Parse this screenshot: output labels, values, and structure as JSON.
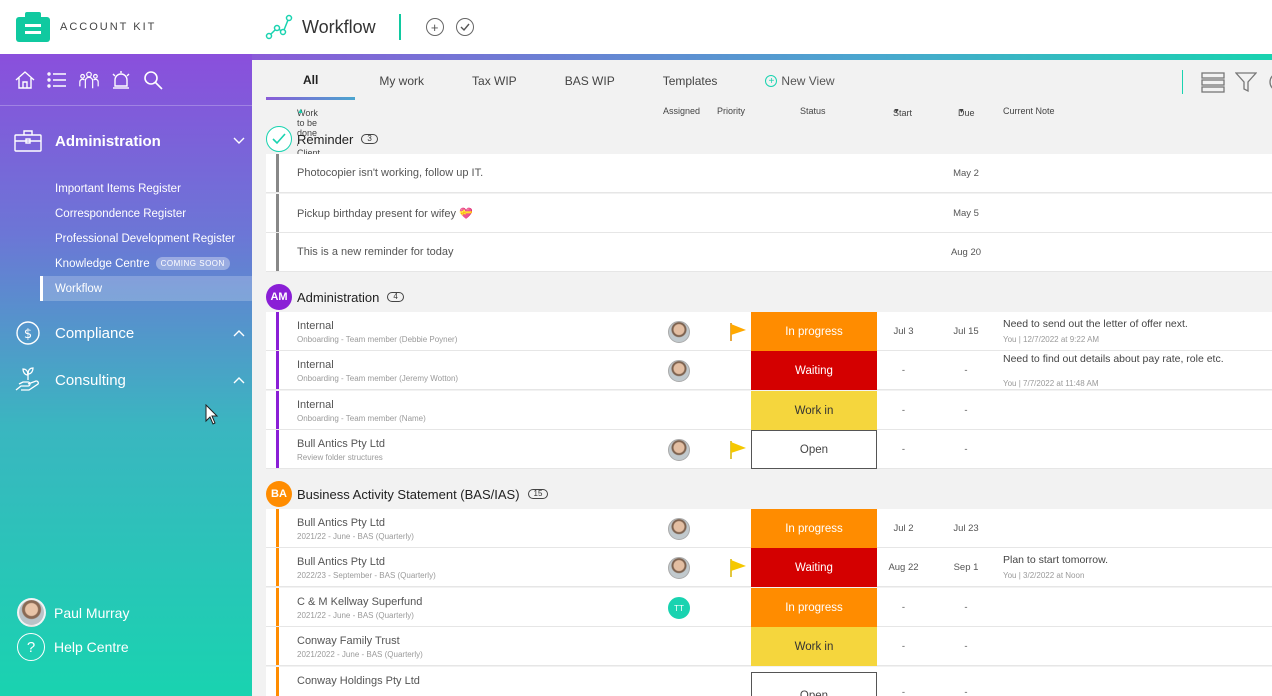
{
  "brand": {
    "name": "ACCOUNT KIT"
  },
  "header": {
    "title": "Workflow"
  },
  "sidebar": {
    "sections": [
      {
        "label": "Administration",
        "items": [
          "Important Items Register",
          "Correspondence Register",
          "Professional Development Register",
          "Knowledge Centre",
          "Workflow"
        ],
        "coming_soon": "COMING SOON",
        "active_item": "Workflow"
      },
      {
        "label": "Compliance"
      },
      {
        "label": "Consulting"
      }
    ],
    "user": {
      "name": "Paul Murray"
    },
    "help": {
      "label": "Help Centre"
    }
  },
  "tabs": {
    "all": "All",
    "my_work": "My work",
    "tax_wip": "Tax WIP",
    "bas_wip": "BAS WIP",
    "templates": "Templates",
    "new_view": "New View"
  },
  "columns": {
    "work": "Work to be done / Client",
    "assigned": "Assigned",
    "priority": "Priority",
    "status": "Status",
    "start": "Start",
    "due": "Due",
    "note": "Current Note"
  },
  "groups": {
    "reminder": {
      "title": "Reminder",
      "count": "3",
      "color": "#19d3b0",
      "rows": [
        {
          "text": "Photocopier isn't working, follow up IT.",
          "due": "May 2"
        },
        {
          "text": "Pickup birthday present for wifey 💝",
          "due": "May 5"
        },
        {
          "text": "This is a new reminder for today",
          "due": "Aug 20"
        }
      ]
    },
    "admin": {
      "title": "Administration",
      "badge": "AM",
      "count": "4",
      "color": "#8a1fd6",
      "rows": [
        {
          "client": "Internal",
          "sub": "Onboarding - Team member (Debbie Poyner)",
          "status": "In progress",
          "start": "Jul 3",
          "due": "Jul 15",
          "note": "Need to send out the letter of offer next.",
          "note_meta": "You | 12/7/2022 at 9:22 AM"
        },
        {
          "client": "Internal",
          "sub": "Onboarding - Team member (Jeremy Wotton)",
          "status": "Waiting",
          "start": "-",
          "due": "-",
          "note": "Need to find out details about pay rate, role etc.",
          "note_meta": "You | 7/7/2022 at 11:48 AM"
        },
        {
          "client": "Internal",
          "sub": "Onboarding - Team member (Name)",
          "status": "Work in",
          "start": "-",
          "due": "-"
        },
        {
          "client": "Bull Antics Pty Ltd",
          "sub": "Review folder structures",
          "status": "Open",
          "start": "-",
          "due": "-"
        }
      ]
    },
    "bas": {
      "title": "Business Activity Statement (BAS/IAS)",
      "badge": "BA",
      "count": "15",
      "color": "#ff8c00",
      "rows": [
        {
          "client": "Bull Antics Pty Ltd",
          "sub": "2021/22 - June - BAS (Quarterly)",
          "status": "In progress",
          "start": "Jul 2",
          "due": "Jul 23"
        },
        {
          "client": "Bull Antics Pty Ltd",
          "sub": "2022/23 - September - BAS (Quarterly)",
          "status": "Waiting",
          "start": "Aug 22",
          "due": "Sep 1",
          "note": "Plan to start tomorrow.",
          "note_meta": "You | 3/2/2022 at Noon"
        },
        {
          "client": "C & M Kellway Superfund",
          "sub": "2021/22 - June - BAS (Quarterly)",
          "assignee": "TT",
          "status": "In progress",
          "start": "-",
          "due": "-"
        },
        {
          "client": "Conway Family Trust",
          "sub": "2021/2022 - June - BAS (Quarterly)",
          "status": "Work in",
          "start": "-",
          "due": "-"
        },
        {
          "client": "Conway Holdings Pty Ltd",
          "status": "Open",
          "start": "-",
          "due": "-"
        }
      ]
    }
  },
  "colors": {
    "accent": "#19d3b0",
    "purple": "#8a4fdc",
    "in_progress": "#ff8c00",
    "waiting": "#d40000",
    "work_in": "#f5d63d"
  }
}
